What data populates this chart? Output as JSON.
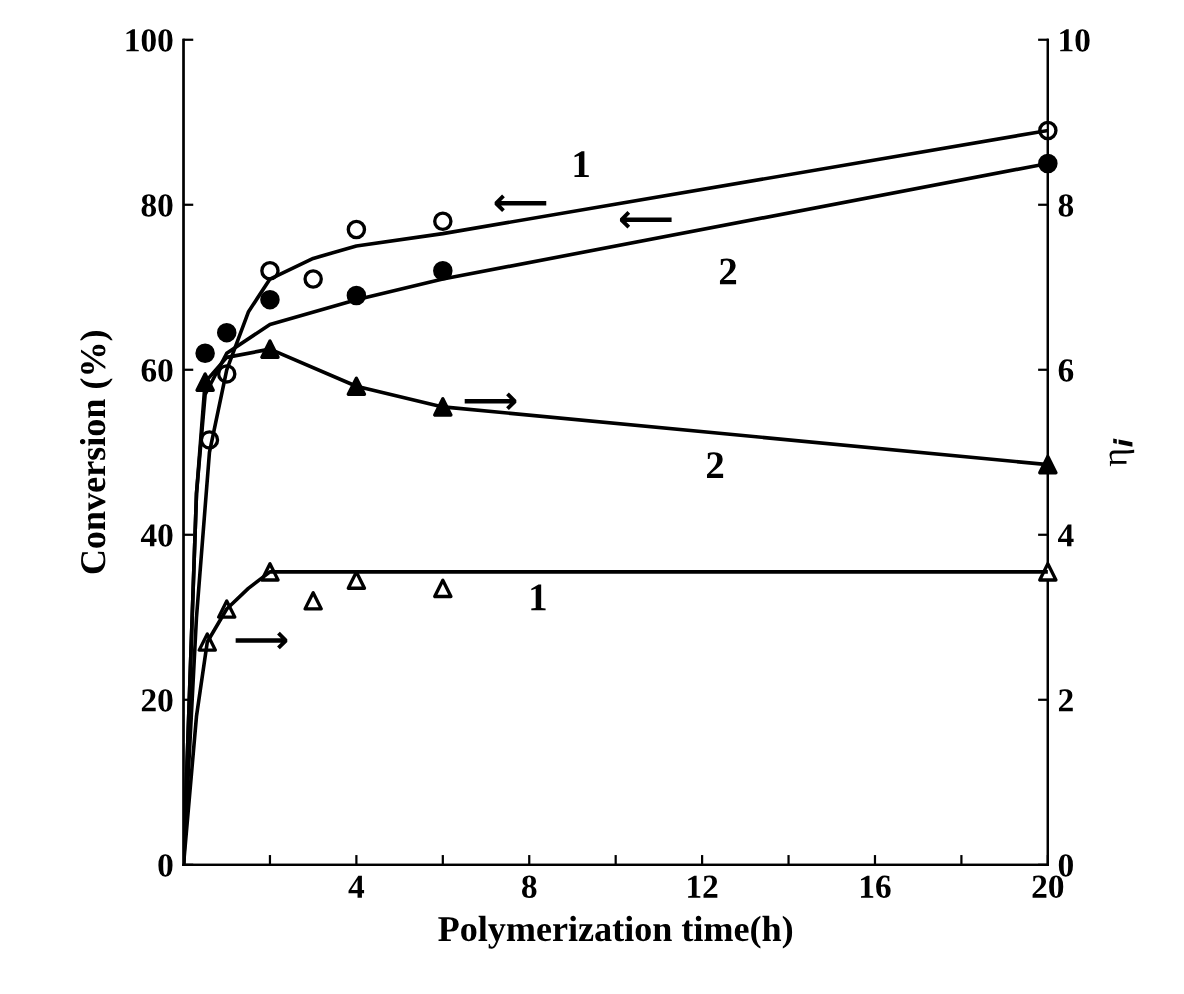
{
  "chart_data": {
    "type": "scatter",
    "xlabel": "Polymerization time(h)",
    "ylabel": "Conversion (%)",
    "y2label": "η$_{i}$",
    "xlim": [
      0,
      20
    ],
    "ylim": [
      0,
      100
    ],
    "y2lim": [
      0,
      10
    ],
    "xticks": [
      {
        "value": 2,
        "label": null
      },
      4,
      {
        "value": 6,
        "label": null
      },
      8,
      {
        "value": 10,
        "label": null
      },
      12,
      {
        "value": 14,
        "label": null
      },
      16,
      {
        "value": 18,
        "label": null
      },
      20
    ],
    "yticks": [
      0,
      20,
      40,
      60,
      80,
      100
    ],
    "y2ticks": [
      0,
      2,
      4,
      6,
      8,
      10
    ],
    "grid": false,
    "legend": false,
    "series": [
      {
        "marker": "circle",
        "color": "#ffffff",
        "x": [
          0.6,
          1,
          2,
          3,
          4,
          6,
          20
        ],
        "values": [
          51.5,
          59.5,
          72,
          71,
          77,
          78,
          89
        ]
      },
      {
        "marker": "circle",
        "color": "#000000",
        "x": [
          0.5,
          1,
          2,
          4,
          6,
          20
        ],
        "values": [
          62,
          64.5,
          68.5,
          69,
          72,
          85
        ]
      },
      {
        "marker": "triangle",
        "color": "#000000",
        "axis": "y2",
        "x": [
          0.5,
          2,
          4,
          6,
          20
        ],
        "values": [
          5.85,
          6.25,
          5.8,
          5.55,
          4.85
        ]
      },
      {
        "marker": "triangle",
        "color": "#ffffff",
        "axis": "y2",
        "x": [
          0.55,
          1,
          2,
          3,
          4,
          6,
          20
        ],
        "values": [
          2.7,
          3.1,
          3.55,
          3.2,
          3.45,
          3.35,
          3.55
        ]
      },
      {
        "type": "line",
        "color": "#000000",
        "x": [
          0,
          0.3,
          0.6,
          1,
          1.5,
          2,
          3,
          4,
          6,
          20
        ],
        "values": [
          0,
          30,
          50,
          60,
          67,
          71,
          73.5,
          75,
          76.5,
          89
        ]
      },
      {
        "type": "line",
        "color": "#000000",
        "x": [
          0,
          0.3,
          0.5,
          1,
          2,
          4,
          6,
          20
        ],
        "values": [
          0,
          45,
          57,
          62,
          65.5,
          68.5,
          71,
          85
        ]
      },
      {
        "type": "line",
        "color": "#000000",
        "axis": "y2",
        "x": [
          0,
          0.3,
          0.5,
          1,
          2,
          4,
          6,
          20
        ],
        "values": [
          0,
          4.5,
          5.85,
          6.15,
          6.25,
          5.8,
          5.55,
          4.85
        ]
      },
      {
        "type": "line",
        "color": "#000000",
        "axis": "y2",
        "x": [
          0,
          0.3,
          0.55,
          1,
          1.5,
          2,
          4,
          20
        ],
        "values": [
          0,
          1.8,
          2.7,
          3.1,
          3.35,
          3.55,
          3.55,
          3.55
        ]
      }
    ],
    "annotations": [
      "1",
      "⟵",
      "2",
      "⟵",
      "⟶",
      "2",
      "1",
      "⟶"
    ]
  }
}
